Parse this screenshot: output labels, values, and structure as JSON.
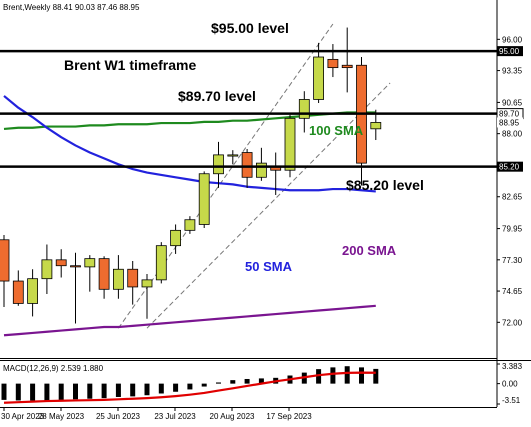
{
  "header": {
    "symbol_line": "Brent,Weekly  88.41 90.03 87.46 88.95"
  },
  "colors": {
    "bull": "#c6d94a",
    "bear": "#ee6c2f",
    "sma50": "#2222dd",
    "sma100": "#1e8a1e",
    "sma200": "#7a1590",
    "macd_signal": "#e00000",
    "level_line": "#000000",
    "channel": "#777777"
  },
  "chart_data": [
    {
      "type": "candlestick",
      "title": "Brent W1 timeframe",
      "ylim": [
        70.5,
        97.3
      ],
      "y_ticks": [
        "96.00",
        "93.35",
        "90.65",
        "88.00",
        "85.20",
        "82.65",
        "79.95",
        "77.30",
        "74.65",
        "72.00"
      ],
      "x_tick_labels": [
        "30 Apr 2023",
        "28 May 2023",
        "25 Jun 2023",
        "23 Jul 2023",
        "20 Aug 2023",
        "17 Sep 2023"
      ],
      "price_labels": [
        {
          "value": 95.0,
          "text": "95.00",
          "style": "inverse"
        },
        {
          "value": 89.7,
          "text": "89.70",
          "style": "boxed"
        },
        {
          "value": 88.95,
          "text": "88.95",
          "style": "plain"
        },
        {
          "value": 85.2,
          "text": "85.20",
          "style": "inverse"
        }
      ],
      "candles": [
        {
          "o": 79.0,
          "h": 79.4,
          "l": 73.3,
          "c": 75.5
        },
        {
          "o": 75.5,
          "h": 76.4,
          "l": 73.4,
          "c": 73.6
        },
        {
          "o": 73.6,
          "h": 76.5,
          "l": 72.5,
          "c": 75.7
        },
        {
          "o": 75.7,
          "h": 78.6,
          "l": 74.4,
          "c": 77.3
        },
        {
          "o": 77.3,
          "h": 78.2,
          "l": 75.8,
          "c": 76.8
        },
        {
          "o": 76.8,
          "h": 77.9,
          "l": 71.9,
          "c": 76.7
        },
        {
          "o": 76.7,
          "h": 77.7,
          "l": 74.6,
          "c": 77.4
        },
        {
          "o": 77.4,
          "h": 77.6,
          "l": 74.0,
          "c": 74.8
        },
        {
          "o": 74.8,
          "h": 77.7,
          "l": 74.0,
          "c": 76.5
        },
        {
          "o": 76.5,
          "h": 77.2,
          "l": 73.5,
          "c": 75.0
        },
        {
          "o": 75.0,
          "h": 76.1,
          "l": 72.3,
          "c": 75.6
        },
        {
          "o": 75.6,
          "h": 78.8,
          "l": 75.3,
          "c": 78.5
        },
        {
          "o": 78.5,
          "h": 80.3,
          "l": 77.8,
          "c": 79.8
        },
        {
          "o": 79.8,
          "h": 81.0,
          "l": 79.5,
          "c": 80.7
        },
        {
          "o": 80.3,
          "h": 84.8,
          "l": 80.0,
          "c": 84.6
        },
        {
          "o": 84.6,
          "h": 87.3,
          "l": 83.4,
          "c": 86.2
        },
        {
          "o": 86.2,
          "h": 86.6,
          "l": 85.4,
          "c": 86.2
        },
        {
          "o": 86.4,
          "h": 86.7,
          "l": 83.4,
          "c": 84.3
        },
        {
          "o": 84.3,
          "h": 86.8,
          "l": 84.0,
          "c": 85.5
        },
        {
          "o": 85.2,
          "h": 86.4,
          "l": 82.8,
          "c": 84.9
        },
        {
          "o": 84.9,
          "h": 89.6,
          "l": 84.3,
          "c": 89.3
        },
        {
          "o": 89.3,
          "h": 91.6,
          "l": 88.1,
          "c": 90.9
        },
        {
          "o": 90.9,
          "h": 95.7,
          "l": 90.6,
          "c": 94.5
        },
        {
          "o": 94.3,
          "h": 95.6,
          "l": 92.8,
          "c": 93.6
        },
        {
          "o": 93.8,
          "h": 97.0,
          "l": 91.5,
          "c": 93.6
        },
        {
          "o": 93.8,
          "h": 94.5,
          "l": 83.6,
          "c": 85.5
        },
        {
          "o": 88.41,
          "h": 90.03,
          "l": 87.46,
          "c": 88.95
        }
      ],
      "sma50": [
        91.2,
        90.2,
        89.4,
        88.5,
        87.7,
        87.0,
        86.4,
        85.9,
        85.4,
        85.0,
        84.7,
        84.5,
        84.3,
        84.1,
        83.9,
        83.8,
        83.7,
        83.5,
        83.4,
        83.3,
        83.2,
        83.2,
        83.2,
        83.3,
        83.3,
        83.2,
        83.1
      ],
      "sma100": [
        88.4,
        88.5,
        88.5,
        88.6,
        88.6,
        88.6,
        88.7,
        88.7,
        88.8,
        88.8,
        88.8,
        88.9,
        88.9,
        88.9,
        89.0,
        89.0,
        89.1,
        89.1,
        89.2,
        89.3,
        89.4,
        89.5,
        89.6,
        89.7,
        89.8,
        89.8,
        89.8
      ],
      "sma200": [
        70.9,
        71.0,
        71.1,
        71.2,
        71.3,
        71.4,
        71.5,
        71.6,
        71.6,
        71.7,
        71.8,
        71.9,
        72.0,
        72.1,
        72.2,
        72.3,
        72.4,
        72.5,
        72.6,
        72.7,
        72.8,
        72.9,
        73.0,
        73.1,
        73.2,
        73.3,
        73.4
      ],
      "levels": [
        {
          "value": 95.0,
          "label": "$95.00 level"
        },
        {
          "value": 89.7,
          "label": "$89.70 level"
        },
        {
          "value": 85.2,
          "label": "$85.20 level"
        }
      ],
      "channel": {
        "lower": [
          {
            "i": 10,
            "v": 71.5
          },
          {
            "i": 27,
            "v": 92.3
          }
        ],
        "upper": [
          {
            "i": 8,
            "v": 71.5
          },
          {
            "i": 23,
            "v": 97.3
          }
        ]
      },
      "annotations": {
        "sma100": "100 SMA",
        "sma50": "50 SMA",
        "sma200": "200 SMA"
      }
    },
    {
      "type": "macd",
      "label": "MACD(12,26,9) 2.539 1.880",
      "y_ticks": [
        "3.383",
        "0.00",
        "-3.51"
      ],
      "ylim": [
        -3.51,
        3.383
      ],
      "histogram": [
        -2.8,
        -2.9,
        -2.9,
        -2.9,
        -2.8,
        -2.7,
        -2.6,
        -2.5,
        -2.3,
        -2.2,
        -2.0,
        -1.7,
        -1.4,
        -1.0,
        -0.5,
        0.2,
        0.6,
        0.8,
        0.9,
        1.0,
        1.4,
        1.9,
        2.5,
        2.8,
        3.0,
        2.8,
        2.54
      ],
      "signal": [
        -3.3,
        -3.2,
        -3.1,
        -3.0,
        -2.95,
        -2.9,
        -2.85,
        -2.8,
        -2.7,
        -2.6,
        -2.5,
        -2.35,
        -2.15,
        -1.9,
        -1.6,
        -1.2,
        -0.8,
        -0.4,
        0.0,
        0.4,
        0.75,
        1.1,
        1.45,
        1.7,
        1.85,
        1.9,
        1.88
      ]
    }
  ]
}
